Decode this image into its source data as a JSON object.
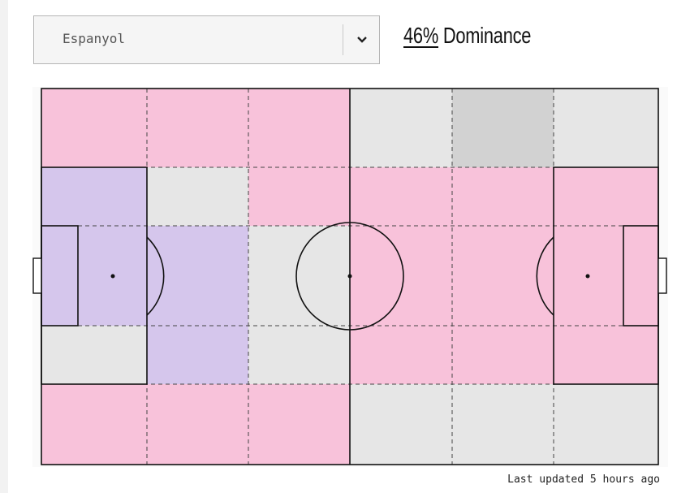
{
  "team_select": {
    "selected": "Espanyol",
    "icon": "chevron-down-icon"
  },
  "dominance": {
    "value": "46%",
    "label": " Dominance"
  },
  "footer": {
    "last_updated": "Last updated 5 hours ago"
  },
  "zone_colors": {
    "home": "#f8c2da",
    "away": "#d5c6ec",
    "neutral": "#e6e6e6",
    "contested": "#d2d2d2"
  },
  "zones": [
    [
      "home",
      "home",
      "home",
      "neutral",
      "contested",
      "neutral"
    ],
    [
      "away",
      "neutral",
      "home",
      "home",
      "home",
      "home"
    ],
    [
      "away",
      "away",
      "neutral",
      "home",
      "home",
      "home"
    ],
    [
      "neutral",
      "away",
      "neutral",
      "home",
      "home",
      "home"
    ],
    [
      "home",
      "home",
      "home",
      "neutral",
      "neutral",
      "neutral"
    ]
  ]
}
